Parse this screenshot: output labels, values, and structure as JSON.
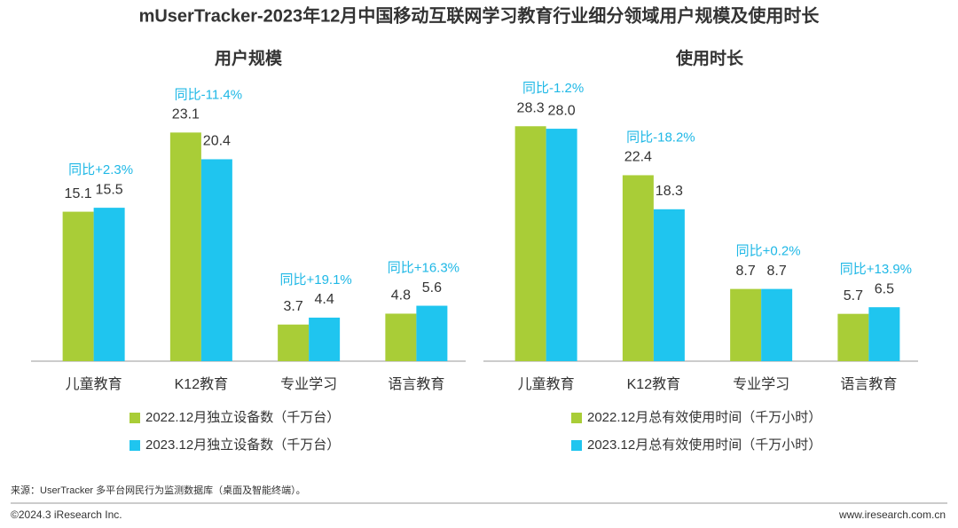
{
  "title": "mUserTracker-2023年12月中国移动互联网学习教育行业细分领域用户规模及使用时长",
  "source": "来源：UserTracker 多平台网民行为监测数据库（桌面及智能终端）。",
  "copyright": "©2024.3 iResearch Inc.",
  "website": "www.iresearch.com.cn",
  "chart_data": [
    {
      "type": "bar",
      "title": "用户规模",
      "categories": [
        "儿童教育",
        "K12教育",
        "专业学习",
        "语言教育"
      ],
      "series": [
        {
          "name": "2022.12月独立设备数（千万台）",
          "color": "#a9cd37",
          "values": [
            15.1,
            23.1,
            3.7,
            4.8
          ],
          "value_labels": [
            "15.1",
            "23.1",
            "3.7",
            "4.8"
          ]
        },
        {
          "name": "2023.12月独立设备数（千万台）",
          "color": "#1fc5ef",
          "values": [
            15.5,
            20.4,
            4.4,
            5.6
          ],
          "value_labels": [
            "15.5",
            "20.4",
            "4.4",
            "5.6"
          ]
        }
      ],
      "annotations": [
        "同比+2.3%",
        "同比-11.4%",
        "同比+19.1%",
        "同比+16.3%"
      ],
      "ylim": [
        0,
        26
      ]
    },
    {
      "type": "bar",
      "title": "使用时长",
      "categories": [
        "儿童教育",
        "K12教育",
        "专业学习",
        "语言教育"
      ],
      "series": [
        {
          "name": "2022.12月总有效使用时间（千万小时）",
          "color": "#a9cd37",
          "values": [
            28.3,
            22.4,
            8.7,
            5.7
          ],
          "value_labels": [
            "28.3",
            "22.4",
            "8.7",
            "5.7"
          ]
        },
        {
          "name": "2023.12月总有效使用时间（千万小时）",
          "color": "#1fc5ef",
          "values": [
            28.0,
            18.3,
            8.7,
            6.5
          ],
          "value_labels": [
            "28.0",
            "18.3",
            "8.7",
            "6.5"
          ]
        }
      ],
      "annotations": [
        "同比-1.2%",
        "同比-18.2%",
        "同比+0.2%",
        "同比+13.9%"
      ],
      "ylim": [
        0,
        31
      ]
    }
  ]
}
